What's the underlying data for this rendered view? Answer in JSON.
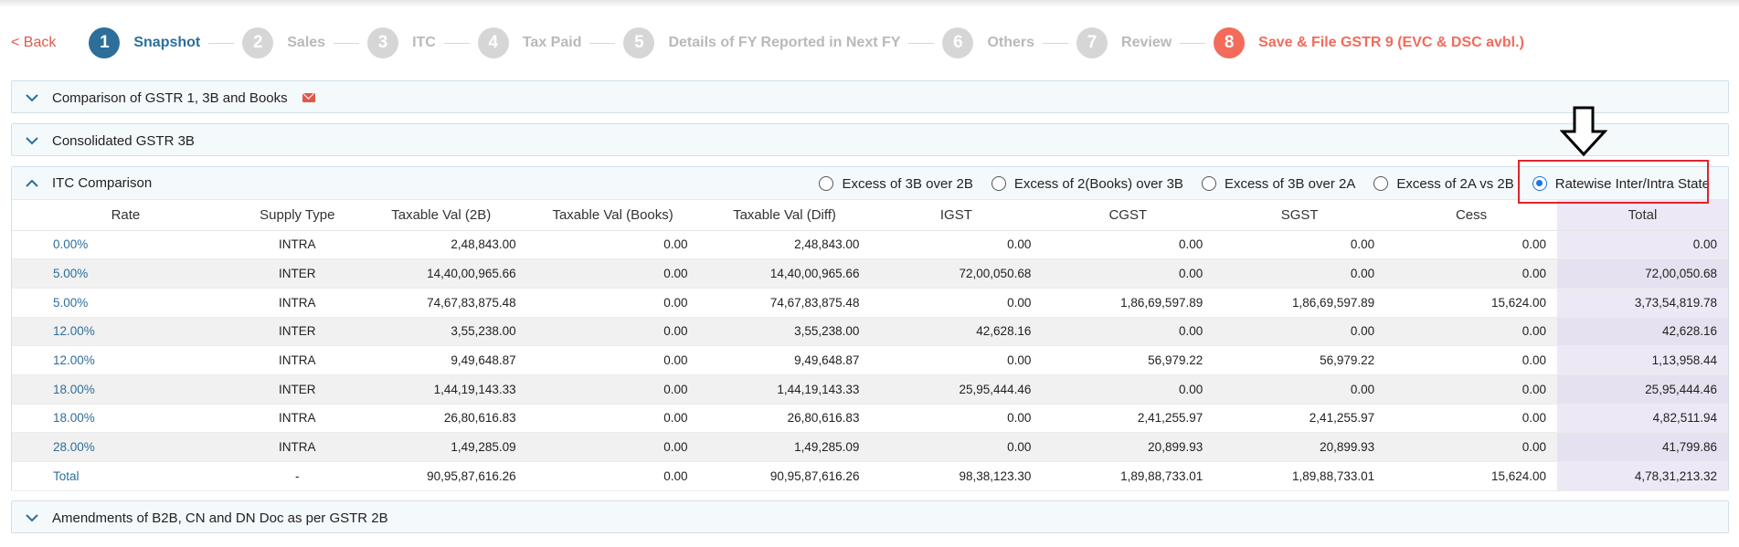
{
  "nav": {
    "back_label": "< Back"
  },
  "steps": [
    {
      "num": "1",
      "label": "Snapshot"
    },
    {
      "num": "2",
      "label": "Sales"
    },
    {
      "num": "3",
      "label": "ITC"
    },
    {
      "num": "4",
      "label": "Tax Paid"
    },
    {
      "num": "5",
      "label": "Details of FY Reported in Next FY"
    },
    {
      "num": "6",
      "label": "Others"
    },
    {
      "num": "7",
      "label": "Review"
    },
    {
      "num": "8",
      "label": "Save & File GSTR 9 (EVC & DSC avbl.)"
    }
  ],
  "panels": {
    "comparison": "Comparison of GSTR 1, 3B and Books",
    "consolidated": "Consolidated GSTR 3B",
    "itc": "ITC Comparison",
    "amendments": "Amendments of B2B, CN and DN Doc as per GSTR 2B"
  },
  "radios": [
    {
      "label": "Excess of 3B over 2B",
      "selected": false
    },
    {
      "label": "Excess of 2(Books) over 3B",
      "selected": false
    },
    {
      "label": "Excess of 3B over 2A",
      "selected": false
    },
    {
      "label": "Excess of 2A vs 2B",
      "selected": false
    },
    {
      "label": "Ratewise Inter/Intra State",
      "selected": true
    }
  ],
  "table": {
    "headers": [
      "Rate",
      "Supply Type",
      "Taxable Val (2B)",
      "Taxable Val (Books)",
      "Taxable Val (Diff)",
      "IGST",
      "CGST",
      "SGST",
      "Cess",
      "Total"
    ],
    "rows": [
      [
        "0.00%",
        "INTRA",
        "2,48,843.00",
        "0.00",
        "2,48,843.00",
        "0.00",
        "0.00",
        "0.00",
        "0.00",
        "0.00"
      ],
      [
        "5.00%",
        "INTER",
        "14,40,00,965.66",
        "0.00",
        "14,40,00,965.66",
        "72,00,050.68",
        "0.00",
        "0.00",
        "0.00",
        "72,00,050.68"
      ],
      [
        "5.00%",
        "INTRA",
        "74,67,83,875.48",
        "0.00",
        "74,67,83,875.48",
        "0.00",
        "1,86,69,597.89",
        "1,86,69,597.89",
        "15,624.00",
        "3,73,54,819.78"
      ],
      [
        "12.00%",
        "INTER",
        "3,55,238.00",
        "0.00",
        "3,55,238.00",
        "42,628.16",
        "0.00",
        "0.00",
        "0.00",
        "42,628.16"
      ],
      [
        "12.00%",
        "INTRA",
        "9,49,648.87",
        "0.00",
        "9,49,648.87",
        "0.00",
        "56,979.22",
        "56,979.22",
        "0.00",
        "1,13,958.44"
      ],
      [
        "18.00%",
        "INTER",
        "1,44,19,143.33",
        "0.00",
        "1,44,19,143.33",
        "25,95,444.46",
        "0.00",
        "0.00",
        "0.00",
        "25,95,444.46"
      ],
      [
        "18.00%",
        "INTRA",
        "26,80,616.83",
        "0.00",
        "26,80,616.83",
        "0.00",
        "2,41,255.97",
        "2,41,255.97",
        "0.00",
        "4,82,511.94"
      ],
      [
        "28.00%",
        "INTRA",
        "1,49,285.09",
        "0.00",
        "1,49,285.09",
        "0.00",
        "20,899.93",
        "20,899.93",
        "0.00",
        "41,799.86"
      ],
      [
        "Total",
        "-",
        "90,95,87,616.26",
        "0.00",
        "90,95,87,616.26",
        "98,38,123.30",
        "1,89,88,733.01",
        "1,89,88,733.01",
        "15,624.00",
        "4,78,31,213.32"
      ]
    ]
  },
  "colors": {
    "primary": "#2d6e9b",
    "accent": "#f26b5b",
    "highlight": "#e0242e",
    "total_column": "#ede8f5"
  }
}
